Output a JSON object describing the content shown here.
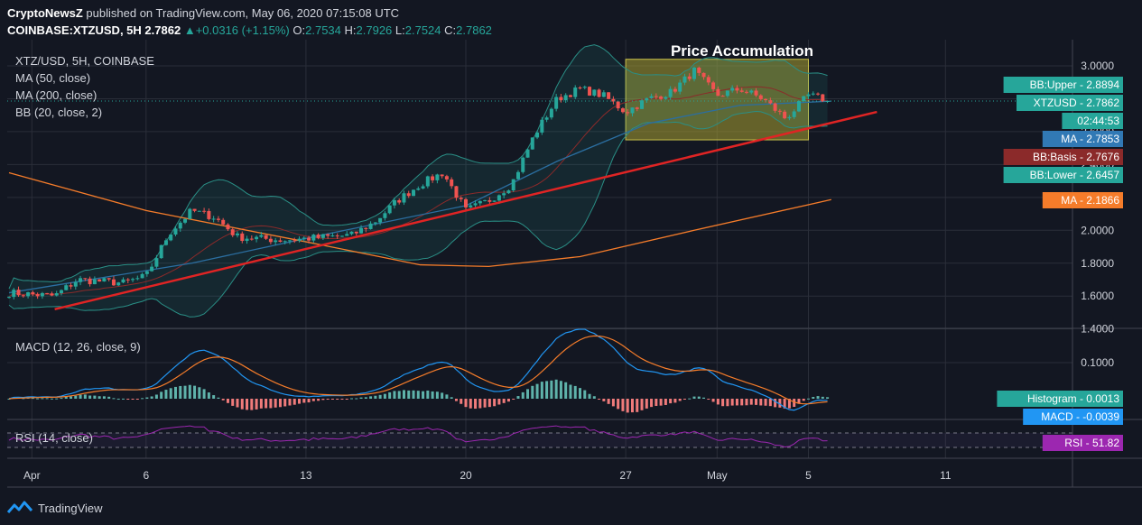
{
  "header": {
    "publisher": "CryptoNewsZ",
    "published_text": "published on TradingView.com, May 06, 2020 07:15:08 UTC",
    "symbol": "COINBASE:XTZUSD, 5H",
    "last": "2.7862",
    "change": "+0.0316 (+1.15%)",
    "o_label": "O:",
    "o": "2.7534",
    "h_label": "H:",
    "h": "2.7926",
    "l_label": "L:",
    "l": "2.7524",
    "c_label": "C:",
    "c": "2.7862"
  },
  "legend": {
    "symbol": "XTZ/USD, 5H, COINBASE",
    "ma50": "MA (50, close)",
    "ma200": "MA (200, close)",
    "bb": "BB (20, close, 2)",
    "macd": "MACD (12, 26, close, 9)",
    "rsi": "RSI (14, close)"
  },
  "annotation": {
    "title": "Price Accumulation"
  },
  "axis": {
    "price_ticks": [
      "3.0000",
      "2.8000",
      "2.6000",
      "2.4000",
      "2.2000",
      "2.0000",
      "1.8000",
      "1.6000",
      "1.4000"
    ],
    "macd_ticks": [
      "0.1000"
    ],
    "x_ticks": [
      "Apr",
      "6",
      "13",
      "20",
      "27",
      "May",
      "5",
      "11"
    ]
  },
  "price_labels": [
    {
      "text": "BB:Upper - 2.8894",
      "value": 2.8894,
      "color": "#26a69a"
    },
    {
      "text": "XTZUSD - 2.7862",
      "value": 2.7862,
      "color": "#26a69a"
    },
    {
      "text": "02:44:53",
      "value": 2.7862,
      "color": "#26a69a",
      "below": true
    },
    {
      "text": "MA - 2.7853",
      "value": 2.7853,
      "color": "#3179b5"
    },
    {
      "text": "BB:Basis - 2.7676",
      "value": 2.7676,
      "color": "#8b2a2a"
    },
    {
      "text": "BB:Lower - 2.6457",
      "value": 2.6457,
      "color": "#26a69a"
    },
    {
      "text": "MA - 2.1866",
      "value": 2.1866,
      "color": "#f57c2a"
    }
  ],
  "indicator_labels": [
    {
      "text": "Histogram - 0.0013",
      "color": "#26a69a"
    },
    {
      "text": "MACD - -0.0039",
      "color": "#2196f3"
    },
    {
      "text": "RSI - 51.82",
      "color": "#9c27b0"
    }
  ],
  "chart_data": {
    "type": "candlestick",
    "symbol": "XTZ/USD",
    "interval": "5H",
    "exchange": "COINBASE",
    "x_range": [
      "2020-03-31",
      "2020-05-06"
    ],
    "y_range": [
      1.4,
      3.05
    ],
    "price_path": [
      [
        "2020-03-31",
        1.62
      ],
      [
        "2020-04-02",
        1.6
      ],
      [
        "2020-04-03",
        1.7
      ],
      [
        "2020-04-05",
        1.68
      ],
      [
        "2020-04-06",
        1.72
      ],
      [
        "2020-04-07",
        1.98
      ],
      [
        "2020-04-08",
        2.12
      ],
      [
        "2020-04-09",
        2.08
      ],
      [
        "2020-04-10",
        1.96
      ],
      [
        "2020-04-12",
        1.94
      ],
      [
        "2020-04-13",
        1.95
      ],
      [
        "2020-04-15",
        1.97
      ],
      [
        "2020-04-16",
        2.05
      ],
      [
        "2020-04-17",
        2.18
      ],
      [
        "2020-04-18",
        2.28
      ],
      [
        "2020-04-19",
        2.35
      ],
      [
        "2020-04-20",
        2.12
      ],
      [
        "2020-04-21",
        2.18
      ],
      [
        "2020-04-22",
        2.28
      ],
      [
        "2020-04-23",
        2.58
      ],
      [
        "2020-04-24",
        2.8
      ],
      [
        "2020-04-25",
        2.86
      ],
      [
        "2020-04-26",
        2.82
      ],
      [
        "2020-04-27",
        2.72
      ],
      [
        "2020-04-28",
        2.8
      ],
      [
        "2020-04-29",
        2.84
      ],
      [
        "2020-04-30",
        2.97
      ],
      [
        "2020-05-01",
        2.82
      ],
      [
        "2020-05-02",
        2.86
      ],
      [
        "2020-05-03",
        2.8
      ],
      [
        "2020-05-04",
        2.68
      ],
      [
        "2020-05-05",
        2.82
      ],
      [
        "2020-05-06",
        2.7862
      ]
    ],
    "ma50_path": [
      [
        "2020-03-31",
        1.62
      ],
      [
        "2020-04-08",
        1.8
      ],
      [
        "2020-04-14",
        1.98
      ],
      [
        "2020-04-20",
        2.15
      ],
      [
        "2020-04-24",
        2.42
      ],
      [
        "2020-04-28",
        2.65
      ],
      [
        "2020-05-02",
        2.76
      ],
      [
        "2020-05-06",
        2.7853
      ]
    ],
    "ma200_path": [
      [
        "2020-03-31",
        2.35
      ],
      [
        "2020-04-06",
        2.12
      ],
      [
        "2020-04-13",
        1.93
      ],
      [
        "2020-04-18",
        1.79
      ],
      [
        "2020-04-21",
        1.78
      ],
      [
        "2020-04-25",
        1.84
      ],
      [
        "2020-04-30",
        2.0
      ],
      [
        "2020-05-06",
        2.1866
      ]
    ],
    "trendline": [
      [
        "2020-04-02",
        1.52
      ],
      [
        "2020-05-08",
        2.72
      ]
    ],
    "accumulation_box": {
      "x": [
        "2020-04-27",
        "2020-05-05"
      ],
      "y": [
        2.55,
        3.04
      ]
    },
    "bollinger": {
      "upper": 2.8894,
      "basis": 2.7676,
      "lower": 2.6457
    },
    "macd": {
      "macd": -0.0039,
      "histogram": 0.0013
    },
    "rsi": 51.82
  }
}
